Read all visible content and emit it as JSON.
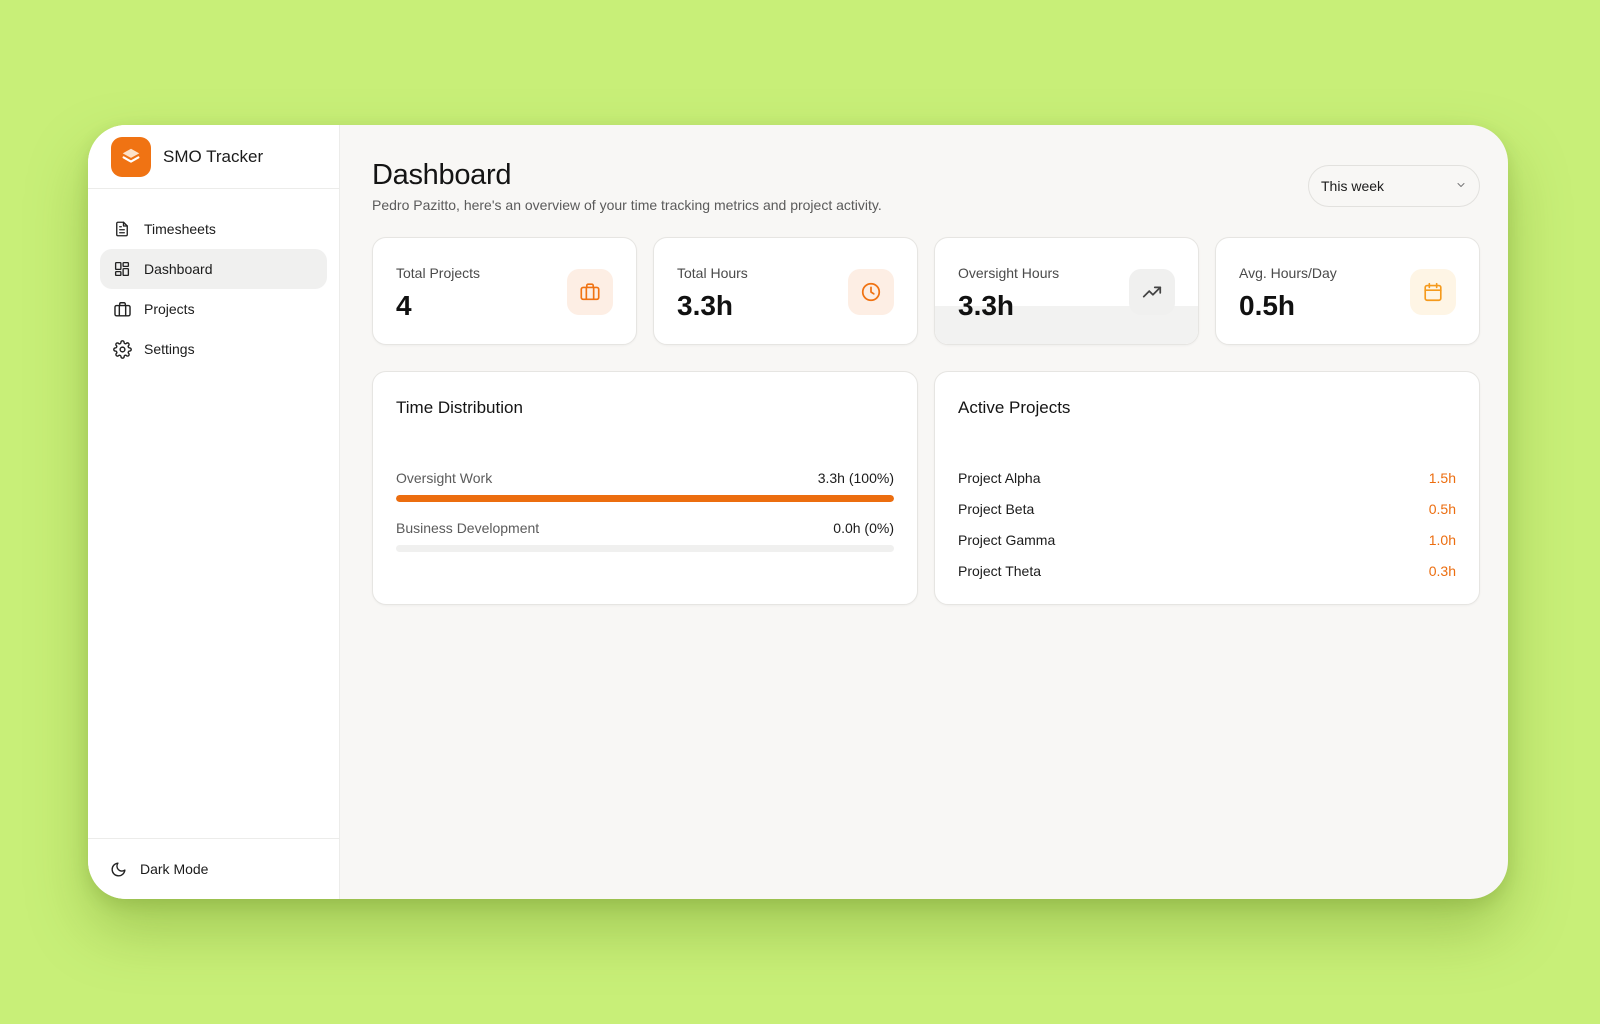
{
  "app": {
    "name": "SMO Tracker"
  },
  "sidebar": {
    "items": [
      {
        "label": "Timesheets",
        "icon": "file-text-icon"
      },
      {
        "label": "Dashboard",
        "icon": "layout-grid-icon",
        "active": true
      },
      {
        "label": "Projects",
        "icon": "briefcase-icon"
      },
      {
        "label": "Settings",
        "icon": "gear-icon"
      }
    ],
    "footer": {
      "label": "Dark Mode",
      "icon": "moon-icon"
    }
  },
  "header": {
    "title": "Dashboard",
    "subtitle": "Pedro Pazitto, here's an overview of your time tracking metrics and project activity.",
    "range": {
      "selected": "This week"
    }
  },
  "stats": [
    {
      "label": "Total Projects",
      "value": "4",
      "icon": "briefcase-icon",
      "icon_color": "#f07313",
      "badge_bg": "#fdeee4"
    },
    {
      "label": "Total Hours",
      "value": "3.3h",
      "icon": "clock-icon",
      "icon_color": "#f07313",
      "badge_bg": "#fdeee4"
    },
    {
      "label": "Oversight Hours",
      "value": "3.3h",
      "icon": "trending-up-icon",
      "icon_color": "#444444",
      "badge_bg": "#f0f0ef"
    },
    {
      "label": "Avg. Hours/Day",
      "value": "0.5h",
      "icon": "calendar-icon",
      "icon_color": "#f59a1c",
      "badge_bg": "#fef5e5"
    }
  ],
  "time_distribution": {
    "title": "Time Distribution",
    "rows": [
      {
        "label": "Oversight Work",
        "value": "3.3h (100%)",
        "fraction": 1.0
      },
      {
        "label": "Business Development",
        "value": "0.0h (0%)",
        "fraction": 0.0
      }
    ]
  },
  "active_projects": {
    "title": "Active Projects",
    "items": [
      {
        "name": "Project Alpha",
        "hours": "1.5h"
      },
      {
        "name": "Project Beta",
        "hours": "0.5h"
      },
      {
        "name": "Project Gamma",
        "hours": "1.0h"
      },
      {
        "name": "Project Theta",
        "hours": "0.3h"
      }
    ]
  },
  "colors": {
    "accent": "#ec6d0f",
    "background": "#c8ef78"
  }
}
